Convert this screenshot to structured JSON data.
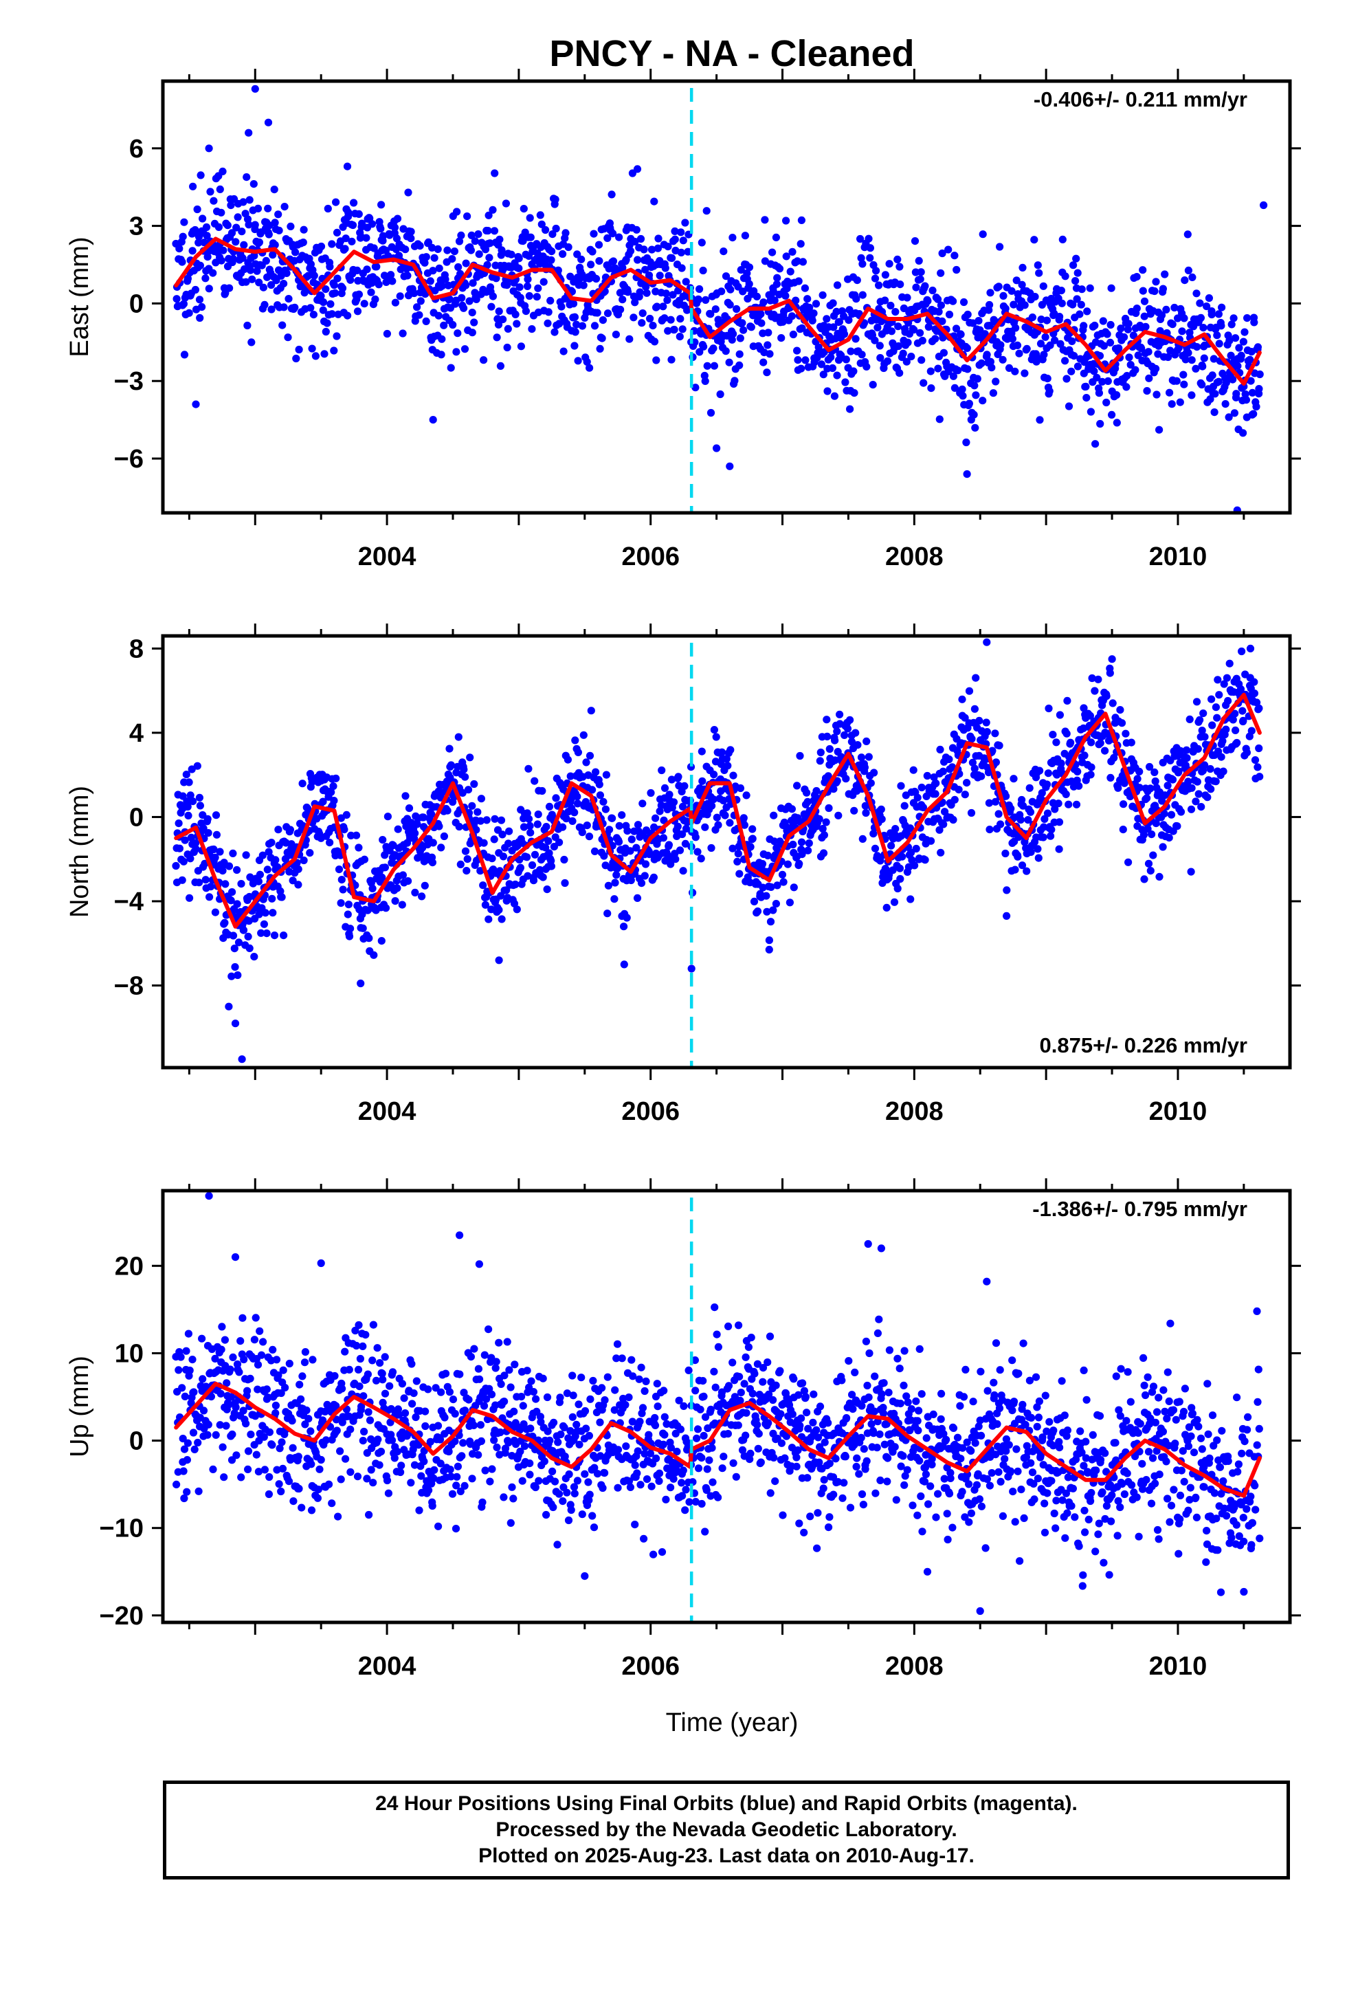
{
  "title": "PNCY  - NA - Cleaned",
  "xlabel": "Time (year)",
  "colors": {
    "points": "#0000ff",
    "fit": "#ff0000",
    "event": "#00d8f0",
    "axes": "#000000"
  },
  "footer": {
    "line1": "24 Hour Positions Using Final Orbits (blue) and Rapid Orbits (magenta).",
    "line2": "Processed by the Nevada Geodetic Laboratory.",
    "line3": "Plotted on 2025-Aug-23. Last data on 2010-Aug-17."
  },
  "chart_data": [
    {
      "type": "scatter",
      "component": "East",
      "ylabel": "East (mm)",
      "rate_label": "-0.406+/- 0.211 mm/yr",
      "rate_position": "top-right",
      "xlim": [
        2002.3,
        2010.85
      ],
      "ylim": [
        -8.1,
        8.6
      ],
      "xticks": [
        2004,
        2006,
        2008,
        2010
      ],
      "yticks": [
        -6,
        -3,
        0,
        3,
        6
      ],
      "event_line_x": 2006.31,
      "series": [
        {
          "kind": "fit",
          "x": [
            2002.4,
            2002.55,
            2002.7,
            2002.85,
            2003.0,
            2003.15,
            2003.3,
            2003.45,
            2003.6,
            2003.75,
            2003.9,
            2004.05,
            2004.2,
            2004.35,
            2004.5,
            2004.65,
            2004.8,
            2004.95,
            2005.1,
            2005.25,
            2005.4,
            2005.55,
            2005.7,
            2005.85,
            2006.0,
            2006.15,
            2006.3,
            2006.31,
            2006.45,
            2006.6,
            2006.75,
            2006.9,
            2007.05,
            2007.2,
            2007.35,
            2007.5,
            2007.65,
            2007.8,
            2007.95,
            2008.1,
            2008.25,
            2008.4,
            2008.55,
            2008.7,
            2008.85,
            2009.0,
            2009.15,
            2009.3,
            2009.45,
            2009.6,
            2009.75,
            2009.9,
            2010.05,
            2010.2,
            2010.35,
            2010.5,
            2010.62
          ],
          "y": [
            0.7,
            1.8,
            2.5,
            2.1,
            2.0,
            2.1,
            1.3,
            0.4,
            1.2,
            2.0,
            1.6,
            1.7,
            1.5,
            0.2,
            0.4,
            1.5,
            1.2,
            1.0,
            1.3,
            1.3,
            0.2,
            0.1,
            1.0,
            1.3,
            0.8,
            0.9,
            0.4,
            -0.2,
            -1.3,
            -0.7,
            -0.2,
            -0.2,
            0.1,
            -0.9,
            -1.8,
            -1.4,
            -0.2,
            -0.6,
            -0.6,
            -0.4,
            -1.2,
            -2.2,
            -1.4,
            -0.4,
            -0.7,
            -1.1,
            -0.8,
            -1.6,
            -2.6,
            -1.8,
            -1.1,
            -1.3,
            -1.6,
            -1.2,
            -2.2,
            -3.1,
            -1.9
          ]
        },
        {
          "kind": "points",
          "n": 2000,
          "seed": 11,
          "noise": 1.25,
          "outliers": [
            [
              2003.0,
              8.3
            ],
            [
              2002.95,
              6.6
            ],
            [
              2003.1,
              7.0
            ],
            [
              2003.7,
              5.3
            ],
            [
              2004.35,
              -4.5
            ],
            [
              2005.9,
              5.2
            ],
            [
              2006.5,
              -5.6
            ],
            [
              2006.6,
              -6.3
            ],
            [
              2008.4,
              -6.6
            ],
            [
              2010.45,
              -8.0
            ],
            [
              2010.65,
              3.8
            ],
            [
              2002.55,
              -3.9
            ],
            [
              2002.65,
              6.0
            ]
          ]
        }
      ]
    },
    {
      "type": "scatter",
      "component": "North",
      "ylabel": "North (mm)",
      "rate_label": "0.875+/- 0.226 mm/yr",
      "rate_position": "bottom-right",
      "xlim": [
        2002.3,
        2010.85
      ],
      "ylim": [
        -11.9,
        8.6
      ],
      "xticks": [
        2004,
        2006,
        2008,
        2010
      ],
      "yticks": [
        -8,
        -4,
        0,
        4,
        8
      ],
      "event_line_x": 2006.31,
      "series": [
        {
          "kind": "fit",
          "x": [
            2002.4,
            2002.55,
            2002.7,
            2002.85,
            2003.0,
            2003.15,
            2003.3,
            2003.45,
            2003.6,
            2003.75,
            2003.9,
            2004.05,
            2004.2,
            2004.35,
            2004.5,
            2004.65,
            2004.8,
            2004.95,
            2005.1,
            2005.25,
            2005.4,
            2005.55,
            2005.7,
            2005.85,
            2006.0,
            2006.15,
            2006.3,
            2006.31,
            2006.45,
            2006.6,
            2006.75,
            2006.9,
            2007.05,
            2007.2,
            2007.35,
            2007.5,
            2007.65,
            2007.8,
            2007.95,
            2008.1,
            2008.25,
            2008.4,
            2008.55,
            2008.7,
            2008.85,
            2009.0,
            2009.15,
            2009.3,
            2009.45,
            2009.6,
            2009.75,
            2009.9,
            2010.05,
            2010.2,
            2010.35,
            2010.5,
            2010.62
          ],
          "y": [
            -1.0,
            -0.5,
            -3.0,
            -5.2,
            -4.0,
            -2.8,
            -2.0,
            0.5,
            0.3,
            -3.8,
            -4.0,
            -2.5,
            -1.5,
            -0.3,
            1.6,
            -0.8,
            -3.6,
            -2.0,
            -1.2,
            -0.7,
            1.6,
            1.0,
            -1.8,
            -2.6,
            -1.0,
            -0.2,
            0.4,
            -0.3,
            1.6,
            1.6,
            -2.4,
            -3.0,
            -0.9,
            -0.2,
            1.5,
            3.0,
            1.0,
            -2.1,
            -1.2,
            0.3,
            1.2,
            3.5,
            3.3,
            0.0,
            -1.0,
            0.8,
            2.0,
            3.8,
            4.9,
            2.3,
            -0.3,
            0.5,
            2.0,
            2.8,
            4.7,
            5.8,
            4.0
          ]
        },
        {
          "kind": "points",
          "n": 2000,
          "seed": 23,
          "noise": 1.25,
          "outliers": [
            [
              2002.85,
              -9.8
            ],
            [
              2002.9,
              -11.5
            ],
            [
              2002.8,
              -9.0
            ],
            [
              2003.8,
              -7.9
            ],
            [
              2004.85,
              -6.8
            ],
            [
              2005.8,
              -7.0
            ],
            [
              2006.31,
              -7.2
            ],
            [
              2006.9,
              -6.3
            ],
            [
              2008.55,
              8.3
            ],
            [
              2008.7,
              -4.7
            ],
            [
              2009.5,
              7.5
            ],
            [
              2010.55,
              8.0
            ],
            [
              2010.1,
              -2.6
            ]
          ]
        }
      ]
    },
    {
      "type": "scatter",
      "component": "Up",
      "ylabel": "Up (mm)",
      "rate_label": "-1.386+/- 0.795 mm/yr",
      "rate_position": "top-right",
      "xlim": [
        2002.3,
        2010.85
      ],
      "ylim": [
        -20.8,
        28.6
      ],
      "xticks": [
        2004,
        2006,
        2008,
        2010
      ],
      "yticks": [
        -20,
        -10,
        0,
        10,
        20
      ],
      "event_line_x": 2006.31,
      "series": [
        {
          "kind": "fit",
          "x": [
            2002.4,
            2002.55,
            2002.7,
            2002.85,
            2003.0,
            2003.15,
            2003.3,
            2003.45,
            2003.6,
            2003.75,
            2003.9,
            2004.05,
            2004.2,
            2004.35,
            2004.5,
            2004.65,
            2004.8,
            2004.95,
            2005.1,
            2005.25,
            2005.4,
            2005.55,
            2005.7,
            2005.85,
            2006.0,
            2006.15,
            2006.3,
            2006.31,
            2006.45,
            2006.6,
            2006.75,
            2006.9,
            2007.05,
            2007.2,
            2007.35,
            2007.5,
            2007.65,
            2007.8,
            2007.95,
            2008.1,
            2008.25,
            2008.4,
            2008.55,
            2008.7,
            2008.85,
            2009.0,
            2009.15,
            2009.3,
            2009.45,
            2009.6,
            2009.75,
            2009.9,
            2010.05,
            2010.2,
            2010.35,
            2010.5,
            2010.62
          ],
          "y": [
            1.5,
            4.0,
            6.5,
            5.5,
            3.8,
            2.5,
            0.8,
            0.0,
            3.0,
            5.0,
            3.8,
            2.5,
            1.0,
            -1.5,
            0.5,
            3.5,
            2.8,
            1.0,
            0.0,
            -2.0,
            -3.0,
            -1.0,
            2.0,
            1.0,
            -0.8,
            -1.5,
            -3.0,
            -1.0,
            0.0,
            3.5,
            4.3,
            2.8,
            1.0,
            -1.0,
            -2.0,
            0.5,
            2.8,
            2.5,
            0.5,
            -1.0,
            -2.5,
            -3.5,
            -1.0,
            1.5,
            1.0,
            -1.5,
            -3.0,
            -4.5,
            -4.5,
            -2.0,
            0.0,
            -1.0,
            -2.8,
            -4.0,
            -5.5,
            -6.3,
            -2.0
          ]
        },
        {
          "kind": "points",
          "n": 2000,
          "seed": 37,
          "noise": 4.3,
          "outliers": [
            [
              2002.65,
              28.0
            ],
            [
              2002.85,
              21.0
            ],
            [
              2003.5,
              20.3
            ],
            [
              2004.55,
              23.5
            ],
            [
              2004.7,
              20.2
            ],
            [
              2005.5,
              -15.5
            ],
            [
              2007.65,
              22.5
            ],
            [
              2007.75,
              22.0
            ],
            [
              2008.1,
              -15.0
            ],
            [
              2008.5,
              -19.5
            ],
            [
              2008.55,
              18.2
            ],
            [
              2010.6,
              14.8
            ],
            [
              2010.5,
              -17.3
            ]
          ]
        }
      ]
    }
  ]
}
